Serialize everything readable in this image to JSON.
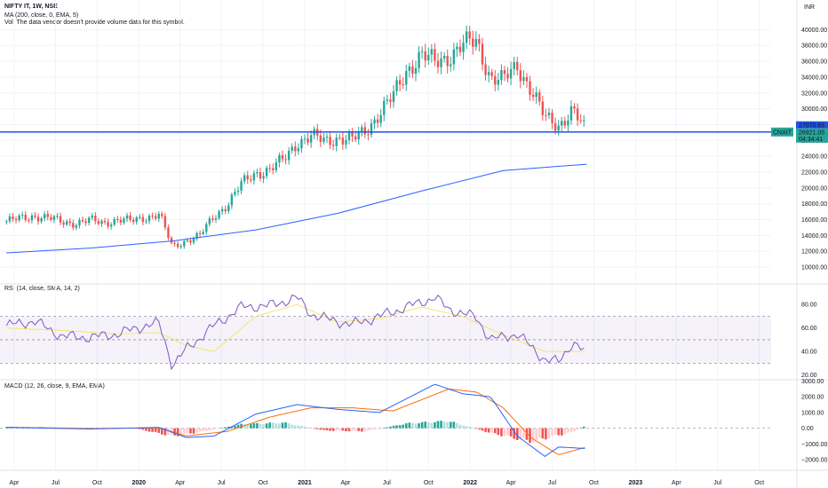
{
  "header": {
    "symbol_line": "NIFTY IT, 1W, NSE",
    "ma_line": "MA (200, close, 0, EMA, 5)",
    "vol_line": "Vol: The data vendor doesn't provide volume data for this symbol."
  },
  "rsi_label": "RSI (14, close, SMA, 14, 2)",
  "macd_label": "MACD (12, 26, close, 9, EMA, EMA)",
  "currency": "INR",
  "colors": {
    "up": "#26a69a",
    "down": "#ef5350",
    "ma": "#2962ff",
    "rsi": "#7e57c2",
    "rsi_ma": "#f5e66b",
    "macd": "#2962ff",
    "signal": "#ff6d00",
    "hline": "#1e53e5"
  },
  "price_badges": {
    "symbol": "CNXIT",
    "high": "27070.65",
    "close": "26921.05",
    "timer": "04:34:41"
  },
  "chart_data": [
    {
      "type": "candlestick",
      "title": "NIFTY IT, 1W, NSE",
      "x_ticks": [
        "Apr",
        "Jul",
        "Oct",
        "2020",
        "Apr",
        "Jul",
        "Oct",
        "2021",
        "Apr",
        "Jul",
        "Oct",
        "2022",
        "Apr",
        "Jul",
        "Oct",
        "2023",
        "Apr",
        "Jul",
        "Oct"
      ],
      "y_ticks": [
        "40000.00",
        "38000.00",
        "36000.00",
        "34000.00",
        "32000.00",
        "30000.00",
        "28000.00",
        "26000.00",
        "24000.00",
        "22000.00",
        "20000.00",
        "18000.00",
        "16000.00",
        "14000.00",
        "12000.00",
        "10000.00"
      ],
      "ylim": [
        9000,
        41500
      ],
      "close_series": {
        "dates": [
          "2019-03",
          "2019-04",
          "2019-05",
          "2019-06",
          "2019-07",
          "2019-08",
          "2019-09",
          "2019-10",
          "2019-11",
          "2019-12",
          "2020-01",
          "2020-02",
          "2020-03",
          "2020-04",
          "2020-05",
          "2020-06",
          "2020-07",
          "2020-08",
          "2020-09",
          "2020-10",
          "2020-11",
          "2020-12",
          "2021-01",
          "2021-02",
          "2021-03",
          "2021-04",
          "2021-05",
          "2021-06",
          "2021-07",
          "2021-08",
          "2021-09",
          "2021-10",
          "2021-11",
          "2021-12",
          "2022-01",
          "2022-02",
          "2022-03",
          "2022-04",
          "2022-05",
          "2022-06",
          "2022-07",
          "2022-08",
          "2022-09"
        ],
        "values": [
          15800,
          16100,
          16500,
          16200,
          15700,
          15600,
          15900,
          15600,
          16000,
          15800,
          16300,
          16700,
          12500,
          13400,
          14000,
          16400,
          18000,
          20500,
          21900,
          22300,
          23500,
          25800,
          26500,
          25900,
          26400,
          26000,
          27200,
          29500,
          31500,
          35000,
          36800,
          35800,
          36700,
          38000,
          38500,
          34000,
          33500,
          35500,
          32500,
          28800,
          28000,
          29800,
          26900
        ]
      },
      "ma200": {
        "dates": [
          "2019-03",
          "2019-09",
          "2020-03",
          "2020-09",
          "2021-03",
          "2021-09",
          "2022-03",
          "2022-09"
        ],
        "values": [
          11800,
          12400,
          13300,
          14700,
          16800,
          19600,
          22200,
          23000
        ]
      },
      "horizontal_line": 27070.65,
      "last_price": 26921.05
    },
    {
      "type": "line",
      "title": "RSI (14, close, SMA, 14, 2)",
      "y_ticks": [
        "80.00",
        "60.00",
        "40.00",
        "20.00"
      ],
      "bands": [
        30,
        50,
        70
      ],
      "ylim": [
        22,
        90
      ],
      "series": [
        {
          "name": "RSI",
          "dates": [
            "2019-03",
            "2019-05",
            "2019-07",
            "2019-09",
            "2019-11",
            "2020-01",
            "2020-02",
            "2020-03",
            "2020-04",
            "2020-06",
            "2020-08",
            "2020-10",
            "2020-12",
            "2021-01",
            "2021-02",
            "2021-04",
            "2021-06",
            "2021-08",
            "2021-10",
            "2021-11",
            "2022-01",
            "2022-02",
            "2022-04",
            "2022-06",
            "2022-07",
            "2022-08",
            "2022-09"
          ],
          "values": [
            62,
            66,
            53,
            52,
            55,
            62,
            64,
            28,
            42,
            62,
            78,
            79,
            86,
            72,
            68,
            63,
            70,
            78,
            86,
            76,
            69,
            50,
            55,
            33,
            31,
            48,
            38
          ]
        },
        {
          "name": "RSI-based MA",
          "dates": [
            "2019-03",
            "2019-07",
            "2019-11",
            "2020-02",
            "2020-04",
            "2020-06",
            "2020-09",
            "2020-12",
            "2021-03",
            "2021-06",
            "2021-09",
            "2021-12",
            "2022-03",
            "2022-06",
            "2022-09"
          ],
          "values": [
            60,
            58,
            55,
            56,
            45,
            40,
            70,
            80,
            65,
            68,
            78,
            70,
            54,
            40,
            40
          ]
        }
      ]
    },
    {
      "type": "bar",
      "title": "MACD (12, 26, close, 9, EMA, EMA)",
      "y_ticks": [
        "3000.00",
        "2000.00",
        "1000.00",
        "0.00",
        "−1000.00",
        "−2000.00"
      ],
      "ylim": [
        -2400,
        3200
      ],
      "series": [
        {
          "name": "MACD",
          "dates": [
            "2019-03",
            "2019-09",
            "2020-02",
            "2020-04",
            "2020-06",
            "2020-09",
            "2020-12",
            "2021-03",
            "2021-06",
            "2021-10",
            "2021-12",
            "2022-02",
            "2022-04",
            "2022-06",
            "2022-07",
            "2022-09"
          ],
          "values": [
            50,
            -50,
            50,
            -600,
            -500,
            900,
            1500,
            1200,
            1000,
            2800,
            2200,
            2000,
            -500,
            -1800,
            -1200,
            -1300
          ]
        },
        {
          "name": "Signal",
          "dates": [
            "2019-03",
            "2019-09",
            "2020-02",
            "2020-04",
            "2020-07",
            "2020-10",
            "2021-01",
            "2021-04",
            "2021-07",
            "2021-11",
            "2022-01",
            "2022-03",
            "2022-05",
            "2022-07",
            "2022-09"
          ],
          "values": [
            60,
            -20,
            20,
            -500,
            -200,
            700,
            1300,
            1300,
            1100,
            2500,
            2300,
            1300,
            -600,
            -1700,
            -1200
          ]
        },
        {
          "name": "Histogram",
          "dates": [
            "2019-06",
            "2019-09",
            "2019-12",
            "2020-03",
            "2020-05",
            "2020-08",
            "2020-11",
            "2021-02",
            "2021-05",
            "2021-08",
            "2021-11",
            "2022-02",
            "2022-05",
            "2022-08",
            "2022-09"
          ],
          "values": [
            60,
            -80,
            40,
            -500,
            -250,
            250,
            350,
            -150,
            -200,
            300,
            450,
            -300,
            -850,
            -250,
            200
          ]
        }
      ]
    }
  ]
}
